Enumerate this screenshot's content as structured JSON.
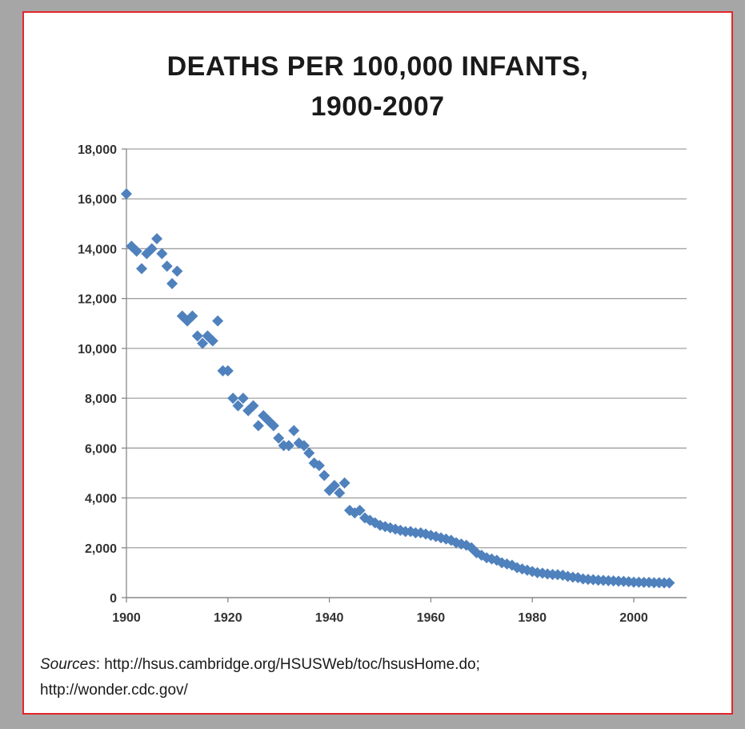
{
  "title_line1": "DEATHS PER 100,000 INFANTS,",
  "title_line2": "1900-2007",
  "sources_label": "Sources",
  "sources_line1": ": http://hsus.cambridge.org/HSUSWeb/toc/hsusHome.do;",
  "sources_line2": "http://wonder.cdc.gov/",
  "colors": {
    "marker": "#4f81bd",
    "grid": "#a0a0a0",
    "frame_border": "#e3262b",
    "outer": "#a6a6a6"
  },
  "chart_data": {
    "type": "scatter",
    "title": "DEATHS PER 100,000 INFANTS, 1900-2007",
    "xlabel": "",
    "ylabel": "",
    "xlim": [
      1900,
      2010
    ],
    "ylim": [
      0,
      18000
    ],
    "xticks": [
      1900,
      1920,
      1940,
      1960,
      1980,
      2000
    ],
    "xtick_labels": [
      "1900",
      "1920",
      "1940",
      "1960",
      "1980",
      "2000"
    ],
    "yticks": [
      0,
      2000,
      4000,
      6000,
      8000,
      10000,
      12000,
      14000,
      16000,
      18000
    ],
    "ytick_labels": [
      "0",
      "2,000",
      "4,000",
      "6,000",
      "8,000",
      "10,000",
      "12,000",
      "14,000",
      "16,000",
      "18,000"
    ],
    "grid": true,
    "marker": "diamond",
    "series": [
      {
        "x": [
          1900,
          1901,
          1902,
          1903,
          1904,
          1905,
          1906,
          1907,
          1908,
          1909,
          1910,
          1911,
          1912,
          1913,
          1914,
          1915,
          1916,
          1917,
          1918,
          1919,
          1920,
          1921,
          1922,
          1923,
          1924,
          1925,
          1926,
          1927,
          1928,
          1929,
          1930,
          1931,
          1932,
          1933,
          1934,
          1935,
          1936,
          1937,
          1938,
          1939,
          1940,
          1941,
          1942,
          1943,
          1944,
          1945,
          1946,
          1947,
          1948,
          1949,
          1950,
          1951,
          1952,
          1953,
          1954,
          1955,
          1956,
          1957,
          1958,
          1959,
          1960,
          1961,
          1962,
          1963,
          1964,
          1965,
          1966,
          1967,
          1968,
          1969,
          1970,
          1971,
          1972,
          1973,
          1974,
          1975,
          1976,
          1977,
          1978,
          1979,
          1980,
          1981,
          1982,
          1983,
          1984,
          1985,
          1986,
          1987,
          1988,
          1989,
          1990,
          1991,
          1992,
          1993,
          1994,
          1995,
          1996,
          1997,
          1998,
          1999,
          2000,
          2001,
          2002,
          2003,
          2004,
          2005,
          2006,
          2007
        ],
        "y": [
          16200,
          14100,
          13900,
          13200,
          13800,
          14000,
          14400,
          13800,
          13300,
          12600,
          13100,
          11300,
          11100,
          11300,
          10500,
          10200,
          10500,
          10300,
          11100,
          9100,
          9100,
          8000,
          7700,
          8000,
          7500,
          7700,
          6900,
          7300,
          7100,
          6900,
          6400,
          6100,
          6100,
          6700,
          6200,
          6100,
          5800,
          5400,
          5300,
          4900,
          4300,
          4500,
          4200,
          4600,
          3500,
          3400,
          3500,
          3200,
          3100,
          3000,
          2900,
          2850,
          2800,
          2750,
          2700,
          2650,
          2650,
          2600,
          2600,
          2550,
          2500,
          2450,
          2400,
          2350,
          2300,
          2200,
          2150,
          2100,
          2000,
          1800,
          1700,
          1600,
          1550,
          1500,
          1400,
          1350,
          1300,
          1200,
          1150,
          1100,
          1050,
          1000,
          980,
          950,
          930,
          920,
          900,
          850,
          820,
          800,
          750,
          730,
          720,
          700,
          690,
          680,
          670,
          660,
          650,
          640,
          620,
          620,
          610,
          610,
          600,
          600,
          590,
          590
        ]
      }
    ]
  }
}
